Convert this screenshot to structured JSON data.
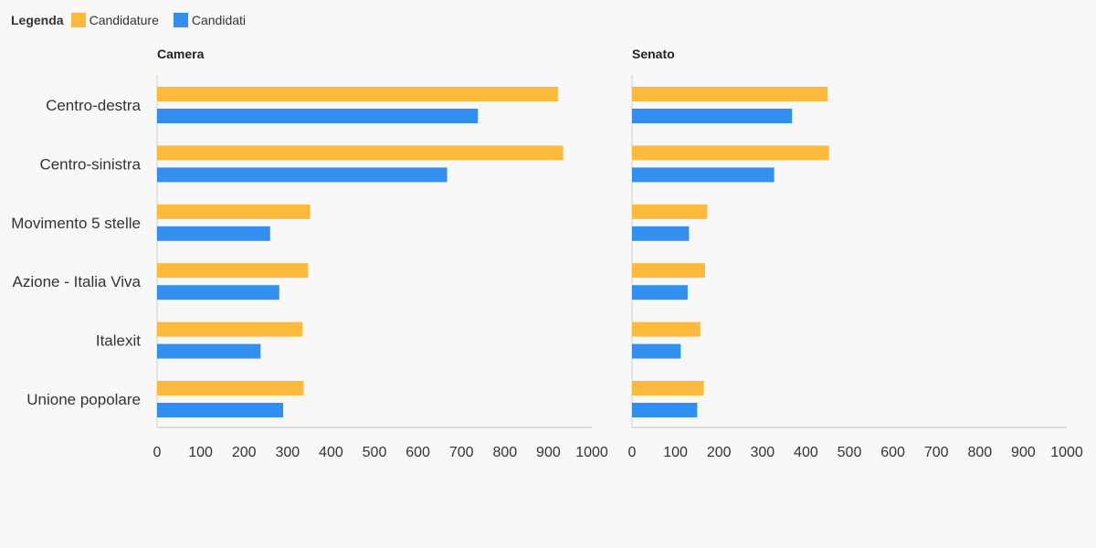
{
  "legend": {
    "title": "Legenda",
    "items": [
      {
        "label": "Candidature",
        "color": "#fdb93c"
      },
      {
        "label": "Candidati",
        "color": "#338fef"
      }
    ]
  },
  "chart_data": [
    {
      "type": "bar",
      "orientation": "horizontal",
      "title": "Camera",
      "categories": [
        "Centro-destra",
        "Centro-sinistra",
        "Movimento 5 stelle",
        "Azione - Italia Viva",
        "Italexit",
        "Unione popolare"
      ],
      "series": [
        {
          "name": "Candidature",
          "color": "#fdb93c",
          "values": [
            922,
            934,
            352,
            347,
            334,
            337
          ]
        },
        {
          "name": "Candidati",
          "color": "#338fef",
          "values": [
            738,
            667,
            260,
            281,
            238,
            290
          ]
        }
      ],
      "xlim": [
        0,
        1000
      ],
      "ticks": [
        0,
        100,
        200,
        300,
        400,
        500,
        600,
        700,
        800,
        900,
        1000
      ]
    },
    {
      "type": "bar",
      "orientation": "horizontal",
      "title": "Senato",
      "categories": [
        "Centro-destra",
        "Centro-sinistra",
        "Movimento 5 stelle",
        "Azione - Italia Viva",
        "Italexit",
        "Unione popolare"
      ],
      "series": [
        {
          "name": "Candidature",
          "color": "#fdb93c",
          "values": [
            450,
            453,
            173,
            168,
            157,
            165
          ]
        },
        {
          "name": "Candidati",
          "color": "#338fef",
          "values": [
            368,
            327,
            131,
            128,
            112,
            150
          ]
        }
      ],
      "xlim": [
        0,
        1000
      ],
      "ticks": [
        0,
        100,
        200,
        300,
        400,
        500,
        600,
        700,
        800,
        900,
        1000
      ]
    }
  ]
}
